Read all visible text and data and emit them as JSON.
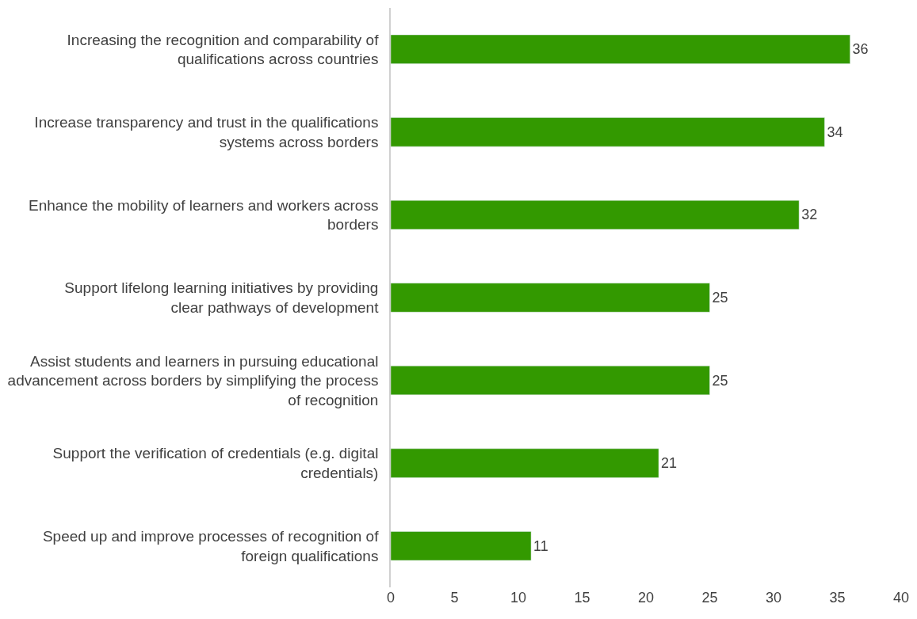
{
  "chart_data": {
    "type": "bar",
    "orientation": "horizontal",
    "categories": [
      "Increasing the recognition and comparability of qualifications across countries",
      "Increase transparency and trust in the qualifications systems across borders",
      "Enhance the mobility of learners and workers across borders",
      "Support lifelong learning initiatives by providing clear pathways of development",
      "Assist students and learners in pursuing educational advancement across borders by simplifying the process of recognition",
      "Support the verification of credentials (e.g. digital credentials)",
      "Speed up and improve processes of recognition of foreign qualifications"
    ],
    "values": [
      36,
      34,
      32,
      25,
      25,
      21,
      11
    ],
    "color": "#339900",
    "xlim": [
      0,
      40
    ],
    "xticks": [
      0,
      5,
      10,
      15,
      20,
      25,
      30,
      35,
      40
    ],
    "data_labels": true
  }
}
